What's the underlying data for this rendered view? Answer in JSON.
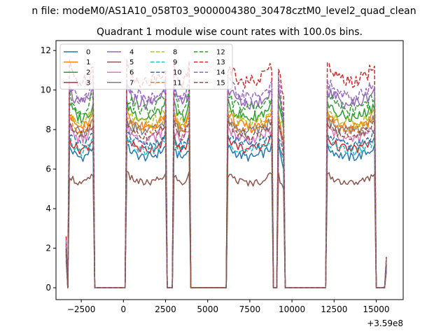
{
  "figure": {
    "suptitle": "n file: modeM0/AS1A10_058T03_9000004380_30478cztM0_level2_quad_clean"
  },
  "chart_data": {
    "type": "line",
    "title": "Quadrant 1 module wise count rates with 100.0s bins.",
    "xlabel": "",
    "ylabel": "",
    "x_offset_label": "+3.59e8",
    "xlim": [
      -4000,
      16600
    ],
    "ylim": [
      -0.6,
      12.5
    ],
    "x_ticks": [
      -2500,
      0,
      2500,
      5000,
      7500,
      10000,
      12500,
      15000
    ],
    "x_tick_labels": [
      "−2500",
      "0",
      "2500",
      "5000",
      "7500",
      "10000",
      "12500",
      "15000"
    ],
    "y_ticks": [
      0,
      2,
      4,
      6,
      8,
      10,
      12
    ],
    "y_tick_labels": [
      "0",
      "2",
      "4",
      "6",
      "8",
      "10",
      "12"
    ],
    "grid": false,
    "legend_position": "upper left",
    "legend_columns": 4,
    "bin_width_s": 100,
    "on_segments": [
      {
        "start": -3400,
        "end": -3300,
        "shape": "fall",
        "from": 1.0,
        "to": 0.0
      },
      {
        "start": -3200,
        "end": -1800,
        "shape": "plateau"
      },
      {
        "start": 200,
        "end": 2500,
        "shape": "plateau"
      },
      {
        "start": 3000,
        "end": 3900,
        "shape": "plateau"
      },
      {
        "start": 6200,
        "end": 8800,
        "shape": "plateau"
      },
      {
        "start": 9200,
        "end": 9500,
        "shape": "spike"
      },
      {
        "start": 12100,
        "end": 14900,
        "shape": "plateau"
      },
      {
        "start": 15500,
        "end": 15600,
        "shape": "rise",
        "from": 0.0,
        "to": 0.6
      }
    ],
    "series": [
      {
        "name": "0",
        "level": 6.6,
        "color": "#1f77b4",
        "dash": "solid"
      },
      {
        "name": "1",
        "level": 8.1,
        "color": "#ff7f0e",
        "dash": "solid"
      },
      {
        "name": "2",
        "level": 8.6,
        "color": "#2ca02c",
        "dash": "solid"
      },
      {
        "name": "3",
        "level": 7.0,
        "color": "#d62728",
        "dash": "solid"
      },
      {
        "name": "4",
        "level": 9.3,
        "color": "#9467bd",
        "dash": "solid"
      },
      {
        "name": "5",
        "level": 5.3,
        "color": "#8c564b",
        "dash": "solid"
      },
      {
        "name": "6",
        "level": 7.5,
        "color": "#e377c2",
        "dash": "solid"
      },
      {
        "name": "7",
        "level": 7.9,
        "color": "#7f7f7f",
        "dash": "solid"
      },
      {
        "name": "8",
        "level": 8.3,
        "color": "#bcbd22",
        "dash": "dashed"
      },
      {
        "name": "9",
        "level": 6.9,
        "color": "#17becf",
        "dash": "dashed"
      },
      {
        "name": "10",
        "level": 7.2,
        "color": "#1f77b4",
        "dash": "dashed"
      },
      {
        "name": "11",
        "level": 8.0,
        "color": "#ff7f0e",
        "dash": "dashed"
      },
      {
        "name": "12",
        "level": 9.0,
        "color": "#2ca02c",
        "dash": "dashed"
      },
      {
        "name": "13",
        "level": 10.4,
        "color": "#d62728",
        "dash": "dashed"
      },
      {
        "name": "14",
        "level": 9.6,
        "color": "#9467bd",
        "dash": "dashed"
      },
      {
        "name": "15",
        "level": 7.7,
        "color": "#8c564b",
        "dash": "dashed"
      }
    ]
  }
}
